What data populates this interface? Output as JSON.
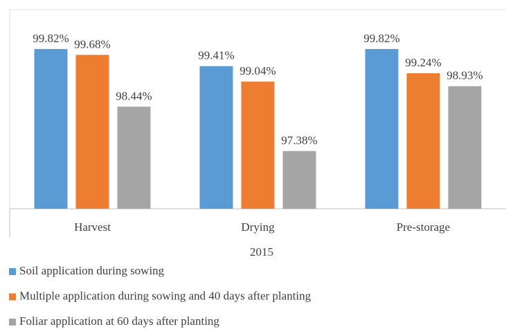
{
  "chart_data": {
    "type": "bar",
    "categories": [
      "Harvest",
      "Drying",
      "Pre-storage"
    ],
    "x_label": "2015",
    "series": [
      {
        "name": "Soil application during sowing",
        "color": "#5b9bd5",
        "values": [
          99.82,
          99.41,
          99.82
        ],
        "value_labels": [
          "99.82%",
          "99.41%",
          "99.82%"
        ]
      },
      {
        "name": "Multiple application during sowing and 40 days after planting",
        "color": "#ed7d31",
        "values": [
          99.68,
          99.04,
          99.24
        ],
        "value_labels": [
          "99.68%",
          "99.04%",
          "99.24%"
        ]
      },
      {
        "name": "Foliar application at 60 days after planting",
        "color": "#a5a5a5",
        "values": [
          98.44,
          97.38,
          98.93
        ],
        "value_labels": [
          "98.44%",
          "97.38%",
          "98.93%"
        ]
      }
    ],
    "ylim": [
      96,
      100
    ]
  }
}
